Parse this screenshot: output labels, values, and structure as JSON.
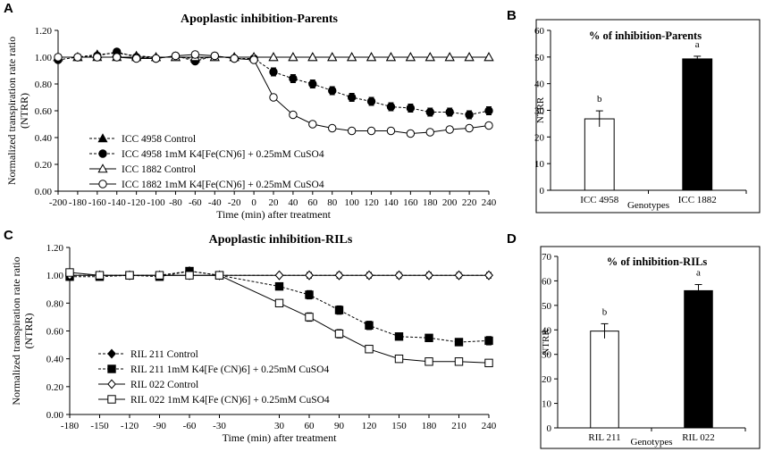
{
  "panels": {
    "A": "A",
    "B": "B",
    "C": "C",
    "D": "D"
  },
  "chart_data": [
    {
      "id": "A",
      "type": "line",
      "title": "Apoplastic  inhibition-Parents",
      "xlabel": "Time (min)  after treatment",
      "ylabel": "Normalized  transpiration rate ratio (NTRR)",
      "ylabel_line1": "Normalized  transpiration rate ratio",
      "ylabel_line2": "(NTRR)",
      "xlim": [
        -200,
        240
      ],
      "ylim": [
        0,
        1.2
      ],
      "x": [
        -200,
        -180,
        -160,
        -140,
        -120,
        -100,
        -80,
        -60,
        -40,
        -20,
        0,
        20,
        40,
        60,
        80,
        100,
        120,
        140,
        160,
        180,
        200,
        220,
        240
      ],
      "xticks": [
        "-200",
        "-180",
        "-160",
        "-140",
        "-120",
        "-100",
        "-80",
        "-60",
        "-40",
        "-20",
        "0",
        "20",
        "40",
        "60",
        "80",
        "100",
        "120",
        "140",
        "160",
        "180",
        "200",
        "220",
        "240"
      ],
      "yticks": [
        "0.00",
        "0.20",
        "0.40",
        "0.60",
        "0.80",
        "1.00",
        "1.20"
      ],
      "series": [
        {
          "name": "ICC 4958 Control",
          "marker": "triangle-filled",
          "dash": true,
          "values": [
            1.0,
            1.0,
            1.02,
            1.03,
            1.01,
            1.0,
            1.0,
            0.99,
            1.0,
            1.0,
            1.0,
            1.0,
            1.0,
            1.0,
            1.0,
            1.0,
            1.0,
            1.0,
            1.0,
            1.0,
            1.0,
            1.0,
            1.0
          ]
        },
        {
          "name": "ICC 4958 1mM K4[Fe(CN)6] + 0.25mM CuSO4",
          "marker": "circle-filled",
          "dash": true,
          "values": [
            0.98,
            1.0,
            1.01,
            1.04,
            1.0,
            0.99,
            1.01,
            0.97,
            1.01,
            0.99,
            0.99,
            0.89,
            0.84,
            0.8,
            0.75,
            0.7,
            0.67,
            0.63,
            0.62,
            0.59,
            0.59,
            0.57,
            0.6
          ],
          "err": [
            0.01,
            0.01,
            0.01,
            0.01,
            0.01,
            0.01,
            0.01,
            0.01,
            0.01,
            0.01,
            0.01,
            0.03,
            0.03,
            0.03,
            0.03,
            0.03,
            0.03,
            0.03,
            0.03,
            0.03,
            0.03,
            0.03,
            0.03
          ]
        },
        {
          "name": "ICC 1882 Control",
          "marker": "triangle-open",
          "dash": false,
          "values": [
            1.0,
            1.0,
            1.0,
            1.0,
            1.0,
            1.0,
            1.0,
            1.0,
            1.0,
            1.0,
            1.0,
            1.0,
            1.0,
            1.0,
            1.0,
            1.0,
            1.0,
            1.0,
            1.0,
            1.0,
            1.0,
            1.0,
            1.0
          ]
        },
        {
          "name": "ICC 1882 1mM K4[Fe(CN)6] + 0.25mM CuSO4",
          "marker": "circle-open",
          "dash": false,
          "values": [
            1.0,
            1.0,
            1.0,
            1.0,
            0.99,
            0.99,
            1.01,
            1.02,
            1.01,
            0.99,
            0.98,
            0.7,
            0.57,
            0.5,
            0.47,
            0.45,
            0.45,
            0.45,
            0.43,
            0.44,
            0.46,
            0.47,
            0.49
          ],
          "err": [
            0.01,
            0.01,
            0.01,
            0.01,
            0.01,
            0.01,
            0.01,
            0.01,
            0.01,
            0.01,
            0.01,
            0.01,
            0.01,
            0.01,
            0.01,
            0.01,
            0.01,
            0.01,
            0.01,
            0.01,
            0.01,
            0.01,
            0.01
          ]
        }
      ]
    },
    {
      "id": "B",
      "type": "bar",
      "title": "% of inhibition-Parents",
      "xlabel": "Genotypes",
      "ylabel": "NTRR",
      "ylim": [
        0,
        60
      ],
      "yticks": [
        "0",
        "10",
        "20",
        "30",
        "40",
        "50",
        "60"
      ],
      "categories": [
        "ICC 4958",
        "ICC 1882"
      ],
      "values": [
        26.8,
        49.3
      ],
      "err": [
        3.0,
        1.0
      ],
      "letters": [
        "b",
        "a"
      ],
      "fills": [
        "#ffffff",
        "#000000"
      ]
    },
    {
      "id": "C",
      "type": "line",
      "title": "Apoplastic inhibition-RILs",
      "xlabel": "Time (min)  after treatment",
      "ylabel": "Normalized  transpiration rate ratio (NTRR)",
      "ylabel_line1": "Normalized  transpiration rate ratio",
      "ylabel_line2": "(NTRR)",
      "xlim": [
        -180,
        240
      ],
      "ylim": [
        0,
        1.2
      ],
      "x": [
        -180,
        -150,
        -120,
        -90,
        -60,
        -30,
        30,
        60,
        90,
        120,
        150,
        180,
        210,
        240
      ],
      "xticks": [
        "-180",
        "-150",
        "-120",
        "-90",
        "-60",
        "-30",
        "30",
        "60",
        "90",
        "120",
        "150",
        "180",
        "210",
        "240"
      ],
      "yticks": [
        "0.00",
        "0.20",
        "0.40",
        "0.60",
        "0.80",
        "1.00",
        "1.20"
      ],
      "series": [
        {
          "name": "RIL 211 Control",
          "marker": "diamond-filled",
          "dash": true,
          "values": [
            1.0,
            1.0,
            1.0,
            1.0,
            1.03,
            1.0,
            1.0,
            1.0,
            1.0,
            1.0,
            1.0,
            1.0,
            1.0,
            1.0
          ]
        },
        {
          "name": "RIL 211 1mM K4[Fe (CN)6] + 0.25mM CuSO4",
          "marker": "square-filled",
          "dash": true,
          "values": [
            0.99,
            0.99,
            1.0,
            0.99,
            1.03,
            1.0,
            0.92,
            0.86,
            0.75,
            0.64,
            0.56,
            0.55,
            0.52,
            0.53
          ],
          "err": [
            0.01,
            0.01,
            0.01,
            0.01,
            0.01,
            0.01,
            0.02,
            0.03,
            0.03,
            0.03,
            0.02,
            0.02,
            0.02,
            0.03
          ]
        },
        {
          "name": "RIL 022 Control",
          "marker": "diamond-open",
          "dash": false,
          "values": [
            1.0,
            1.0,
            1.0,
            1.0,
            1.0,
            1.0,
            1.0,
            1.0,
            1.0,
            1.0,
            1.0,
            1.0,
            1.0,
            1.0
          ],
          "err": [
            0.02,
            0.01,
            0.01,
            0.01,
            0.01,
            0.01,
            0.01,
            0.02,
            0.02,
            0.02,
            0.02,
            0.02,
            0.02,
            0.02
          ]
        },
        {
          "name": "RIL 022 1mM K4[Fe (CN)6] + 0.25mM CuSO4",
          "marker": "square-open",
          "dash": false,
          "values": [
            1.02,
            1.0,
            1.0,
            1.0,
            1.0,
            1.0,
            0.8,
            0.7,
            0.58,
            0.47,
            0.4,
            0.38,
            0.38,
            0.37
          ],
          "err": [
            0.01,
            0.01,
            0.01,
            0.01,
            0.01,
            0.01,
            0.02,
            0.03,
            0.03,
            0.02,
            0.01,
            0.01,
            0.01,
            0.01
          ]
        }
      ]
    },
    {
      "id": "D",
      "type": "bar",
      "title": "% of inhibition-RILs",
      "xlabel": "Genotypes",
      "ylabel": "NTRR",
      "ylim": [
        0,
        70
      ],
      "yticks": [
        "0",
        "10",
        "20",
        "30",
        "40",
        "50",
        "60",
        "70"
      ],
      "categories": [
        "RIL 211",
        "RIL 022"
      ],
      "values": [
        39.5,
        56.0
      ],
      "err": [
        3.0,
        2.5
      ],
      "letters": [
        "b",
        "a"
      ],
      "fills": [
        "#ffffff",
        "#000000"
      ]
    }
  ]
}
